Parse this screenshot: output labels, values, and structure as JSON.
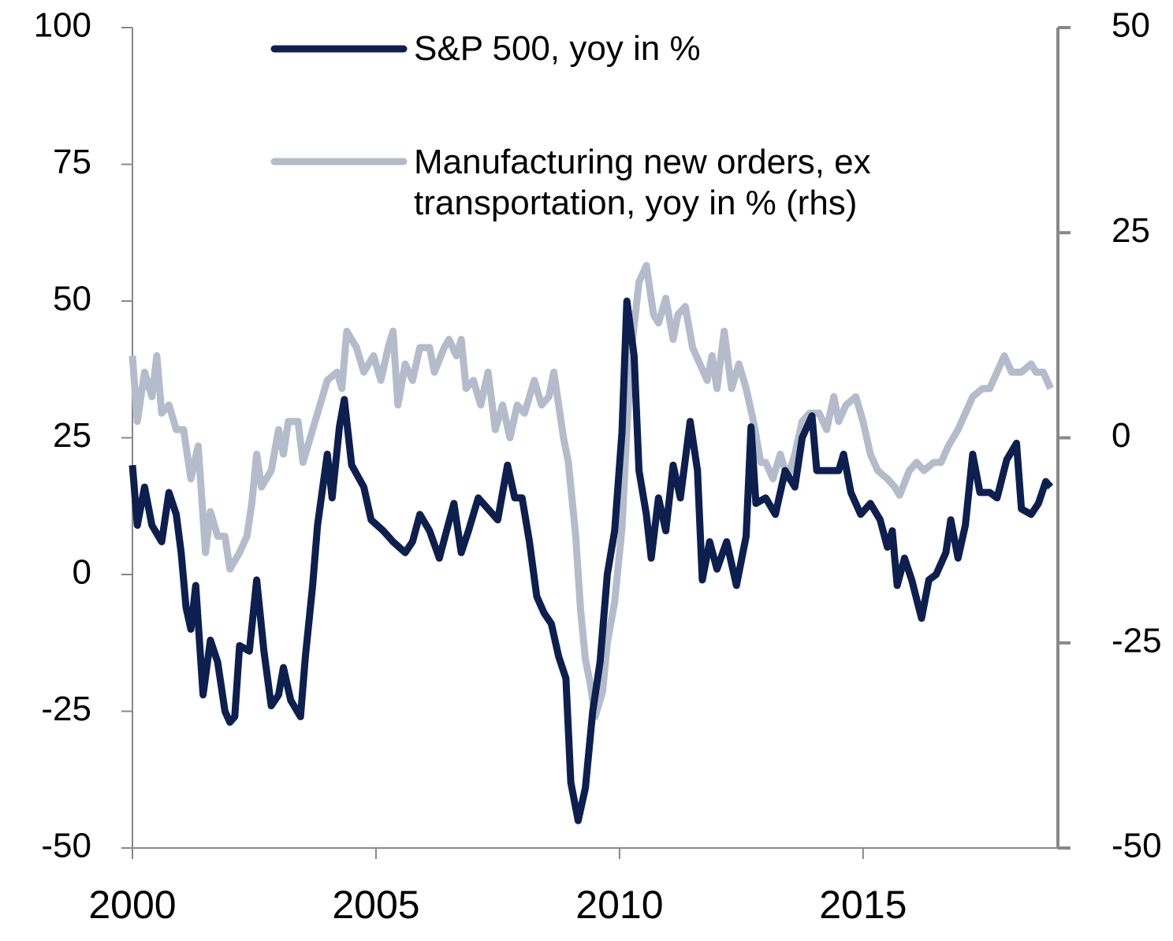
{
  "chart_data": {
    "type": "line",
    "xlim": [
      2000,
      2019
    ],
    "xticks": [
      2000,
      2005,
      2010,
      2015
    ],
    "ylim": [
      -50,
      100
    ],
    "yticks": [
      -50,
      -25,
      0,
      25,
      50,
      75,
      100
    ],
    "y2lim": [
      -50,
      50
    ],
    "y2ticks": [
      -50,
      -25,
      0,
      25,
      50
    ],
    "series": [
      {
        "name": "S&P 500, yoy in %",
        "color": "#0d1f4f",
        "axis": "y",
        "x": [
          2000.0,
          2000.1,
          2000.25,
          2000.4,
          2000.6,
          2000.75,
          2000.9,
          2001.0,
          2001.1,
          2001.2,
          2001.3,
          2001.45,
          2001.6,
          2001.75,
          2001.9,
          2002.0,
          2002.1,
          2002.2,
          2002.4,
          2002.55,
          2002.7,
          2002.85,
          2003.0,
          2003.1,
          2003.25,
          2003.45,
          2003.55,
          2003.7,
          2003.8,
          2004.0,
          2004.1,
          2004.25,
          2004.35,
          2004.5,
          2004.75,
          2004.9,
          2005.15,
          2005.35,
          2005.6,
          2005.75,
          2005.9,
          2006.1,
          2006.3,
          2006.45,
          2006.6,
          2006.75,
          2006.9,
          2007.1,
          2007.3,
          2007.5,
          2007.7,
          2007.85,
          2008.0,
          2008.15,
          2008.3,
          2008.45,
          2008.6,
          2008.75,
          2008.9,
          2009.0,
          2009.15,
          2009.3,
          2009.45,
          2009.6,
          2009.75,
          2009.9,
          2010.05,
          2010.15,
          2010.3,
          2010.4,
          2010.55,
          2010.65,
          2010.8,
          2010.95,
          2011.1,
          2011.25,
          2011.45,
          2011.6,
          2011.7,
          2011.85,
          2012.0,
          2012.2,
          2012.4,
          2012.6,
          2012.7,
          2012.8,
          2013.0,
          2013.2,
          2013.4,
          2013.6,
          2013.75,
          2013.95,
          2014.05,
          2014.3,
          2014.5,
          2014.6,
          2014.75,
          2014.95,
          2015.15,
          2015.35,
          2015.5,
          2015.6,
          2015.7,
          2015.85,
          2016.0,
          2016.2,
          2016.35,
          2016.5,
          2016.7,
          2016.8,
          2016.95,
          2017.1,
          2017.25,
          2017.4,
          2017.6,
          2017.75,
          2017.95,
          2018.15,
          2018.25,
          2018.45,
          2018.6,
          2018.75,
          2018.85
        ],
        "values": [
          20,
          9,
          16,
          9,
          6,
          15,
          11,
          4,
          -6,
          -10,
          -2,
          -22,
          -12,
          -16,
          -25,
          -27,
          -26,
          -13,
          -14,
          -1,
          -14,
          -24,
          -22,
          -17,
          -23,
          -26,
          -15,
          -2,
          9,
          22,
          14,
          27,
          32,
          20,
          16,
          10,
          8,
          6,
          4,
          6,
          11,
          8,
          3,
          8,
          13,
          4,
          8,
          14,
          12,
          10,
          20,
          14,
          14,
          6,
          -4,
          -7,
          -9,
          -15,
          -19,
          -38,
          -45,
          -39,
          -25,
          -16,
          0,
          8,
          26,
          50,
          40,
          19,
          11,
          3,
          14,
          8,
          20,
          14,
          28,
          19,
          -1,
          6,
          1,
          6,
          -2,
          7,
          27,
          13,
          14,
          11,
          19,
          16,
          25,
          29,
          19,
          19,
          19,
          22,
          15,
          11,
          13,
          10,
          5,
          8,
          -2,
          3,
          -1,
          -8,
          -1,
          0,
          4,
          10,
          3,
          9,
          22,
          15,
          15,
          14,
          21,
          24,
          12,
          11,
          13,
          17,
          16
        ]
      },
      {
        "name": "Manufacturing new orders, ex transportation, yoy in % (rhs)",
        "color": "#b4bccb",
        "axis": "y2",
        "x": [
          2000.0,
          2000.1,
          2000.25,
          2000.4,
          2000.5,
          2000.6,
          2000.75,
          2000.9,
          2001.05,
          2001.2,
          2001.35,
          2001.5,
          2001.6,
          2001.75,
          2001.9,
          2002.0,
          2002.2,
          2002.35,
          2002.45,
          2002.55,
          2002.65,
          2002.85,
          2003.0,
          2003.1,
          2003.2,
          2003.4,
          2003.5,
          2003.7,
          2003.9,
          2004.0,
          2004.2,
          2004.3,
          2004.4,
          2004.6,
          2004.75,
          2004.95,
          2005.1,
          2005.25,
          2005.35,
          2005.45,
          2005.6,
          2005.75,
          2005.9,
          2006.1,
          2006.2,
          2006.4,
          2006.5,
          2006.65,
          2006.75,
          2006.85,
          2007.0,
          2007.15,
          2007.3,
          2007.45,
          2007.6,
          2007.75,
          2007.9,
          2008.05,
          2008.25,
          2008.4,
          2008.55,
          2008.65,
          2008.75,
          2008.85,
          2008.95,
          2009.1,
          2009.2,
          2009.3,
          2009.4,
          2009.5,
          2009.65,
          2009.75,
          2009.9,
          2010.05,
          2010.15,
          2010.25,
          2010.4,
          2010.55,
          2010.7,
          2010.8,
          2010.95,
          2011.1,
          2011.2,
          2011.35,
          2011.5,
          2011.65,
          2011.8,
          2011.9,
          2012.0,
          2012.15,
          2012.3,
          2012.45,
          2012.6,
          2012.75,
          2012.9,
          2013.0,
          2013.15,
          2013.3,
          2013.45,
          2013.6,
          2013.75,
          2013.9,
          2014.1,
          2014.25,
          2014.4,
          2014.5,
          2014.65,
          2014.85,
          2015.0,
          2015.15,
          2015.3,
          2015.5,
          2015.65,
          2015.75,
          2015.95,
          2016.1,
          2016.25,
          2016.45,
          2016.6,
          2016.75,
          2016.95,
          2017.1,
          2017.25,
          2017.45,
          2017.6,
          2017.75,
          2017.9,
          2018.05,
          2018.15,
          2018.25,
          2018.45,
          2018.55,
          2018.7,
          2018.85
        ],
        "values": [
          10,
          2,
          8,
          5,
          10,
          3,
          4,
          1,
          1,
          -5,
          -1,
          -14,
          -9,
          -12,
          -12,
          -16,
          -14,
          -12,
          -8,
          -2,
          -6,
          -4,
          1,
          -2,
          2,
          2,
          -3,
          1,
          5,
          7,
          8,
          6,
          13,
          11,
          8,
          10,
          7,
          11,
          13,
          4,
          9,
          7,
          11,
          11,
          8,
          11,
          12,
          10,
          12,
          6,
          7,
          4,
          8,
          1,
          4,
          0,
          4,
          3,
          7,
          4,
          5,
          8,
          4,
          0,
          -3,
          -12,
          -21,
          -27,
          -30,
          -34,
          -31,
          -25,
          -20,
          -11,
          1,
          11,
          19,
          21,
          15,
          14,
          17,
          12,
          15,
          16,
          11,
          9,
          7,
          10,
          6,
          13,
          6,
          9,
          6,
          2,
          -3,
          -3,
          -5,
          -2,
          -5,
          -2,
          2,
          3,
          3,
          1,
          5,
          2,
          4,
          5,
          2,
          -2,
          -4,
          -5,
          -6,
          -7,
          -4,
          -3,
          -4,
          -3,
          -3,
          -1,
          1,
          3,
          5,
          6,
          6,
          8,
          10,
          8,
          8,
          8,
          9,
          8,
          8,
          6
        ]
      }
    ]
  }
}
